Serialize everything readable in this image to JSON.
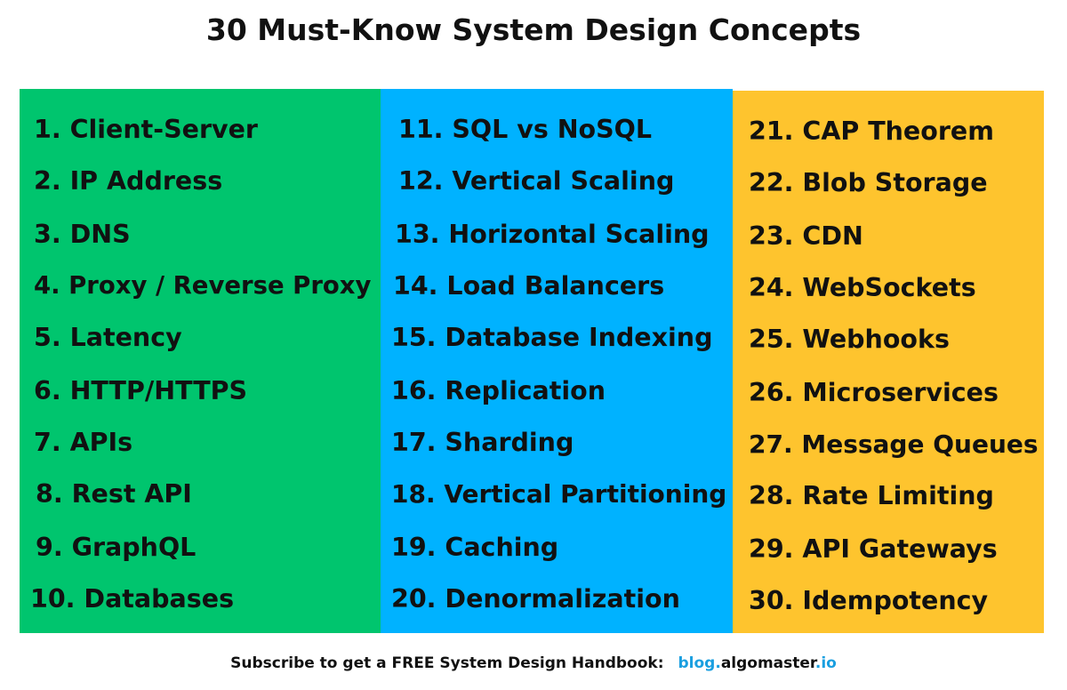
{
  "title": "30 Must-Know System Design Concepts",
  "colors": {
    "green_panel": "#00c56e",
    "blue_panel": "#00b2ff",
    "yellow_panel": "#fec42e",
    "link_blue": "#1a9fe0"
  },
  "columns": [
    {
      "items": [
        "1. Client-Server",
        "2. IP Address",
        "3. DNS",
        "4. Proxy / Reverse Proxy",
        "5. Latency",
        "6. HTTP/HTTPS",
        "7. APIs",
        "8. Rest API",
        "9. GraphQL",
        "10. Databases"
      ]
    },
    {
      "items": [
        "11. SQL vs NoSQL",
        "12. Vertical Scaling",
        "13. Horizontal Scaling",
        "14. Load Balancers",
        "15. Database Indexing",
        "16. Replication",
        "17. Sharding",
        "18. Vertical Partitioning",
        "19. Caching",
        "20. Denormalization"
      ]
    },
    {
      "items": [
        "21. CAP Theorem",
        "22. Blob Storage",
        "23. CDN",
        "24. WebSockets",
        "25. Webhooks",
        "26. Microservices",
        "27. Message Queues",
        "28. Rate Limiting",
        "29. API Gateways",
        "30. Idempotency"
      ]
    }
  ],
  "footer": {
    "text": "Subscribe to get a FREE System Design Handbook:",
    "link_part1": "blog.",
    "link_part2": "algomaster",
    "link_part3": ".io"
  }
}
